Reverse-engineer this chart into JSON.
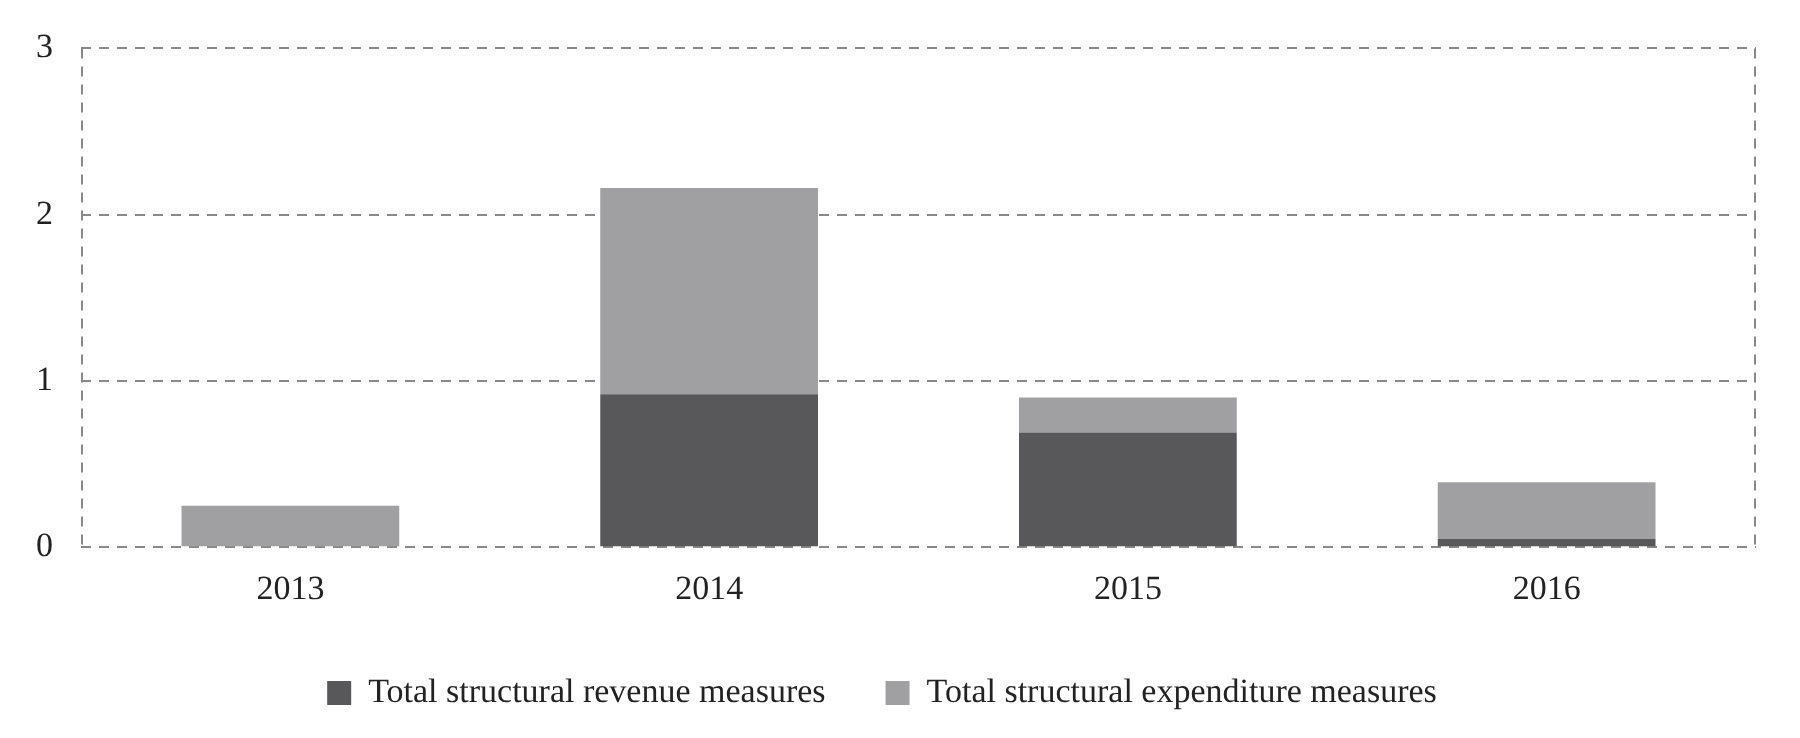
{
  "chart_data": {
    "type": "bar",
    "stacked": true,
    "categories": [
      "2013",
      "2014",
      "2015",
      "2016"
    ],
    "series": [
      {
        "name": "Total structural revenue measures",
        "color": "#58585a",
        "values": [
          0,
          0.92,
          0.69,
          0.05
        ]
      },
      {
        "name": "Total structural expenditure measures",
        "color": "#a0a0a2",
        "values": [
          0.25,
          1.24,
          0.21,
          0.34
        ]
      }
    ],
    "ylim": [
      0,
      3
    ],
    "yticks": [
      0,
      1,
      2,
      3
    ],
    "grid": "y",
    "legend": "bottom"
  }
}
